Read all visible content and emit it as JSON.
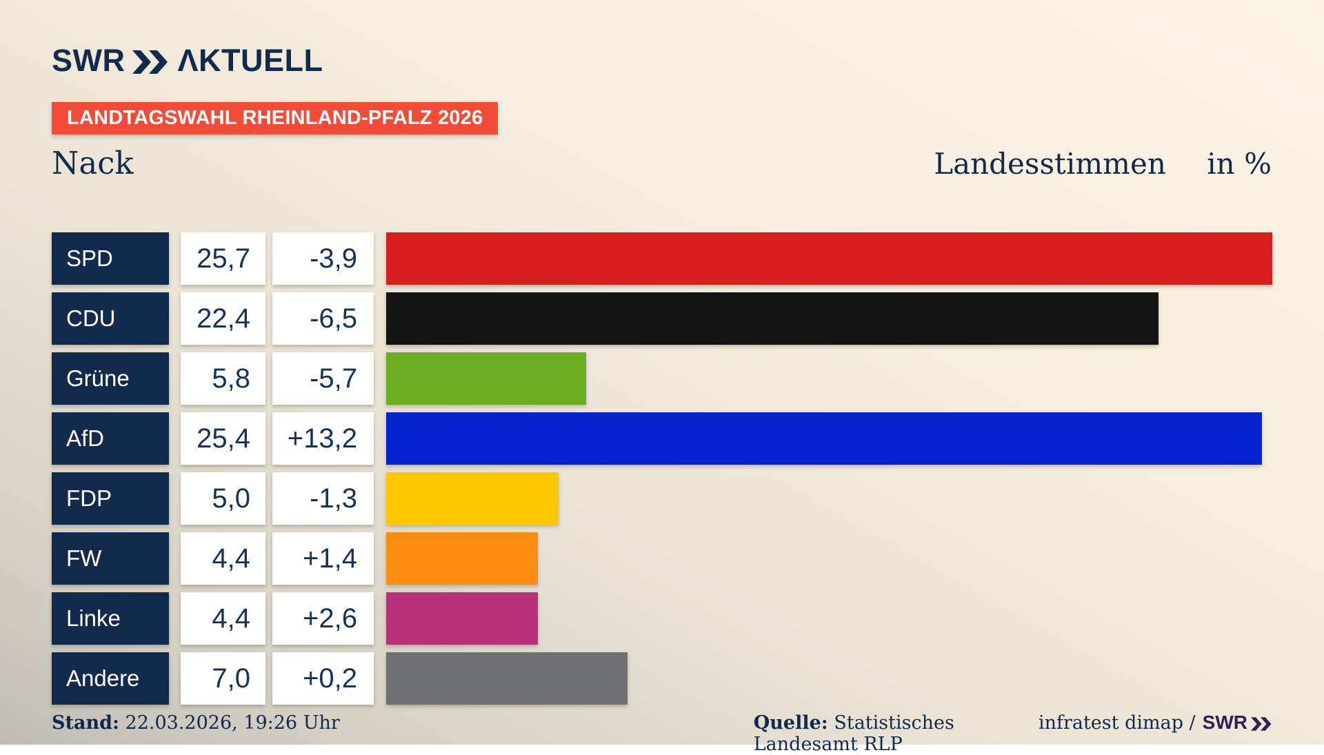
{
  "header": {
    "logo_main": "SWR",
    "logo_suffix": "ΛKTUELL",
    "banner": "LANDTAGSWAHL RHEINLAND-PFALZ 2026"
  },
  "title": {
    "municipality": "Nack",
    "measure": "Landesstimmen",
    "unit": "in %"
  },
  "chart_data": {
    "type": "bar",
    "orientation": "horizontal",
    "title": "Nack",
    "xlabel": "Landesstimmen in %",
    "ylabel": "",
    "xlim": [
      0,
      27.2
    ],
    "grid": false,
    "legend": false,
    "categories": [
      "SPD",
      "CDU",
      "Grüne",
      "AfD",
      "FDP",
      "FW",
      "Linke",
      "Andere"
    ],
    "values": [
      25.7,
      22.4,
      5.8,
      25.4,
      5.0,
      4.4,
      4.4,
      7.0
    ],
    "value_labels": [
      "25,7",
      "22,4",
      "5,8",
      "25,4",
      "5,0",
      "4,4",
      "4,4",
      "7,0"
    ],
    "change_labels": [
      "-3,9",
      "-6,5",
      "-5,7",
      "+13,2",
      "-1,3",
      "+1,4",
      "+2,6",
      "+0,2"
    ],
    "bar_colors": [
      "#d71f22",
      "#131313",
      "#68ae1f",
      "#0522cc",
      "#fec800",
      "#f98d12",
      "#b8307a",
      "#6f7072"
    ]
  },
  "colors": {
    "navy": "#122a4b",
    "banner_red": "#f24b38",
    "text_navy": "#16305a",
    "credit_logo": "#2e2150"
  },
  "footer": {
    "stand_label": "Stand:",
    "stand_value": "22.03.2026, 19:26 Uhr",
    "quelle_label": "Quelle:",
    "quelle_value": "Statistisches Landesamt RLP",
    "credit_text": "infratest dimap /",
    "credit_logo": "SWR"
  }
}
